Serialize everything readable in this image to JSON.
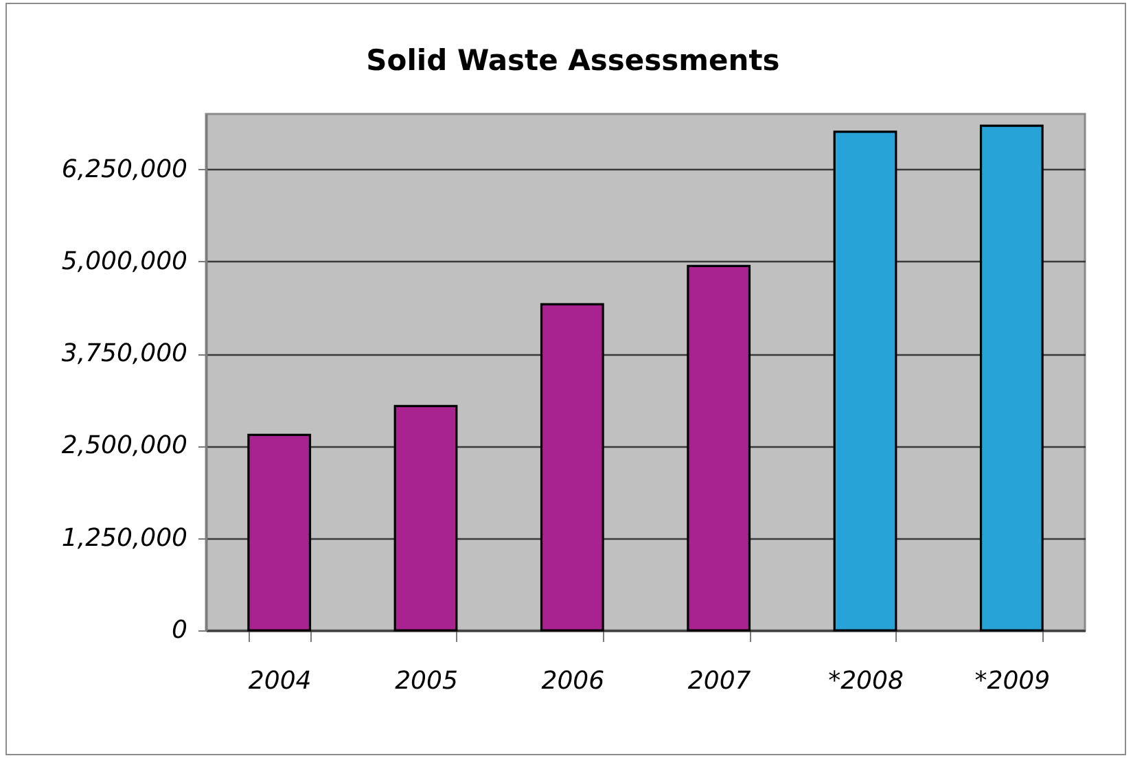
{
  "chart_data": {
    "type": "bar",
    "title": "Solid Waste Assessments",
    "categories": [
      "2004",
      "2005",
      "2006",
      "2007",
      "*2008",
      "*2009"
    ],
    "values": [
      2650000,
      3040000,
      4420000,
      4940000,
      6760000,
      6840000
    ],
    "colors": [
      "#a8238f",
      "#a8238f",
      "#a8238f",
      "#a8238f",
      "#27a3d8",
      "#27a3d8"
    ],
    "ylim": [
      0,
      7000000
    ],
    "yticks": [
      0,
      {
        "value": 1250000,
        "label": "1,250,000"
      },
      {
        "value": 2500000,
        "label": "2,500,000"
      },
      {
        "value": 3750000,
        "label": "3,750,000"
      },
      {
        "value": 5000000,
        "label": "5,000,000"
      },
      {
        "value": 6250000,
        "label": "6,250,000"
      }
    ],
    "grid": "y"
  }
}
